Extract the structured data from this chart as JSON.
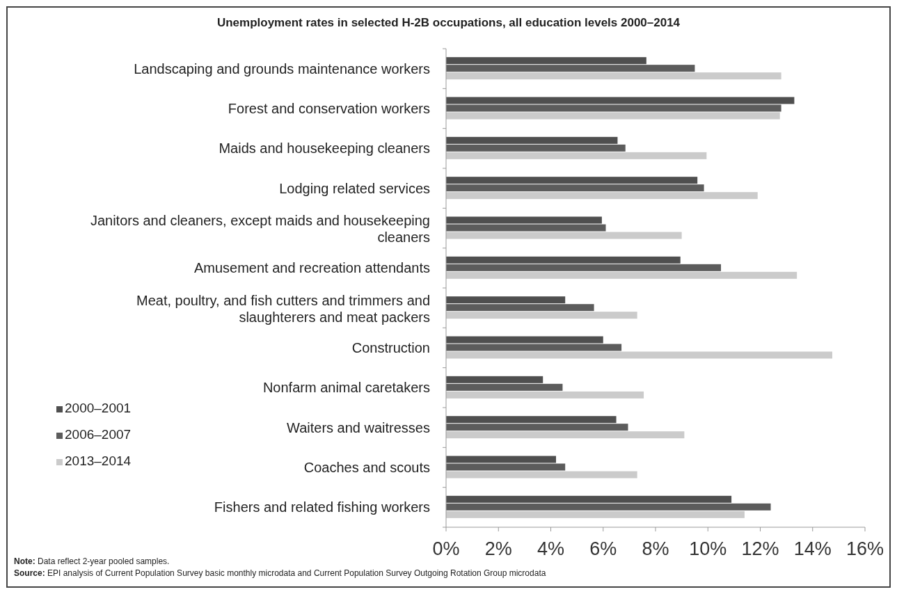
{
  "chart_data": {
    "type": "bar",
    "orientation": "horizontal",
    "title": "Unemployment rates in selected H-2B occupations, all education levels 2000–2014",
    "categories": [
      "Landscaping and grounds maintenance workers",
      "Forest and conservation workers",
      "Maids and housekeeping cleaners",
      "Lodging related services",
      "Janitors and cleaners, except maids and housekeeping cleaners",
      "Amusement and recreation attendants",
      "Meat, poultry, and fish cutters and trimmers and slaughterers and meat packers",
      "Construction",
      "Nonfarm animal caretakers",
      "Waiters and waitresses",
      "Coaches and scouts",
      "Fishers and related fishing workers"
    ],
    "series": [
      {
        "name": "2000–2001",
        "color": "#4f4f4f",
        "values": [
          7.65,
          13.3,
          6.55,
          9.6,
          5.95,
          8.95,
          4.55,
          6.0,
          3.7,
          6.5,
          4.2,
          10.9
        ]
      },
      {
        "name": "2006–2007",
        "color": "#5c5c5c",
        "values": [
          9.5,
          12.8,
          6.85,
          9.85,
          6.1,
          10.5,
          5.65,
          6.7,
          4.45,
          6.95,
          4.55,
          12.4
        ]
      },
      {
        "name": "2013–2014",
        "color": "#cbcbcb",
        "values": [
          12.8,
          12.75,
          9.95,
          11.9,
          9.0,
          13.4,
          7.3,
          14.75,
          7.55,
          9.1,
          7.3,
          11.4
        ]
      }
    ],
    "xlim": [
      0,
      16
    ],
    "xticks": [
      {
        "value": 0,
        "label": "0%"
      },
      {
        "value": 2,
        "label": "2%"
      },
      {
        "value": 4,
        "label": "4%"
      },
      {
        "value": 6,
        "label": "6%"
      },
      {
        "value": 8,
        "label": "8%"
      },
      {
        "value": 10,
        "label": "10%"
      },
      {
        "value": 12,
        "label": "12%"
      },
      {
        "value": 14,
        "label": "14%"
      },
      {
        "value": 16,
        "label": "16%"
      }
    ],
    "grid": false,
    "legend": "bottom left",
    "annotations": [
      "Note: Data reflect 2-year pooled samples.",
      "Source: EPI analysis of Current Population Survey basic monthly microdata and Current Population Survey Outgoing Rotation Group microdata"
    ]
  }
}
